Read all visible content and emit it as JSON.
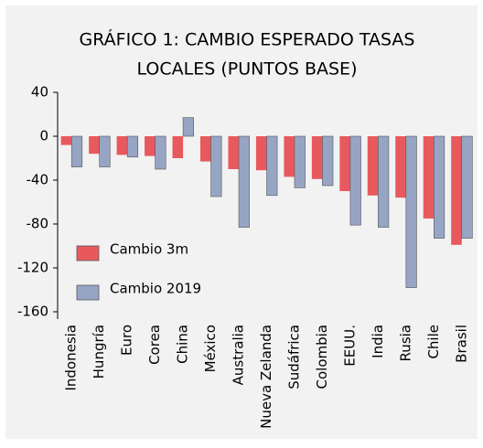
{
  "chart_data": {
    "type": "bar",
    "title": [
      "GRÁFICO 1: CAMBIO ESPERADO TASAS",
      "LOCALES (PUNTOS BASE)"
    ],
    "categories": [
      "Indonesia",
      "Hungría",
      "Euro",
      "Corea",
      "China",
      "México",
      "Australia",
      "Nueva Zelanda",
      "Sudáfrica",
      "Colombia",
      "EEUU.",
      "India",
      "Rusia",
      "Chile",
      "Brasil"
    ],
    "series": [
      {
        "name": "Cambio 3m",
        "color": "#e8595e",
        "values": [
          -8,
          -16,
          -17,
          -18,
          -20,
          -23,
          -30,
          -31,
          -37,
          -39,
          -50,
          -54,
          -56,
          -75,
          -99
        ]
      },
      {
        "name": "Cambio 2019",
        "color": "#97a5c5",
        "values": [
          -28,
          -28,
          -19,
          -30,
          17,
          -55,
          -83,
          -54,
          -47,
          -45,
          -81,
          -83,
          -138,
          -93,
          -93
        ]
      }
    ],
    "ylim": [
      -160,
      40
    ],
    "yticks": [
      40,
      0,
      -40,
      -80,
      -120,
      -160
    ],
    "grid": false,
    "legend": "left"
  }
}
